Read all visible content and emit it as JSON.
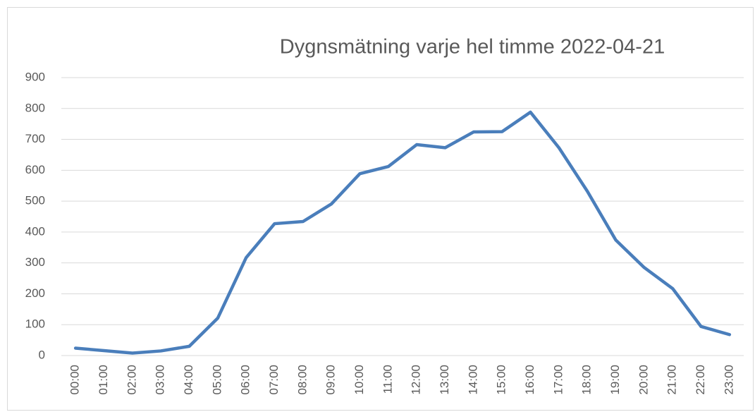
{
  "chart_data": {
    "type": "line",
    "title": "Dygnsmätning varje hel timme 2022-04-21",
    "categories": [
      "00:00",
      "01:00",
      "02:00",
      "03:00",
      "04:00",
      "05:00",
      "06:00",
      "07:00",
      "08:00",
      "09:00",
      "10:00",
      "11:00",
      "12:00",
      "13:00",
      "14:00",
      "15:00",
      "16:00",
      "17:00",
      "18:00",
      "19:00",
      "20:00",
      "21:00",
      "22:00",
      "23:00"
    ],
    "values": [
      24,
      16,
      8,
      15,
      30,
      121,
      317,
      427,
      434,
      491,
      589,
      612,
      683,
      673,
      724,
      725,
      788,
      673,
      532,
      374,
      285,
      217,
      94,
      68
    ],
    "color": "#4a7ebb",
    "ylim": [
      0,
      900
    ],
    "yticks": [
      0,
      100,
      200,
      300,
      400,
      500,
      600,
      700,
      800,
      900
    ],
    "grid": true
  }
}
